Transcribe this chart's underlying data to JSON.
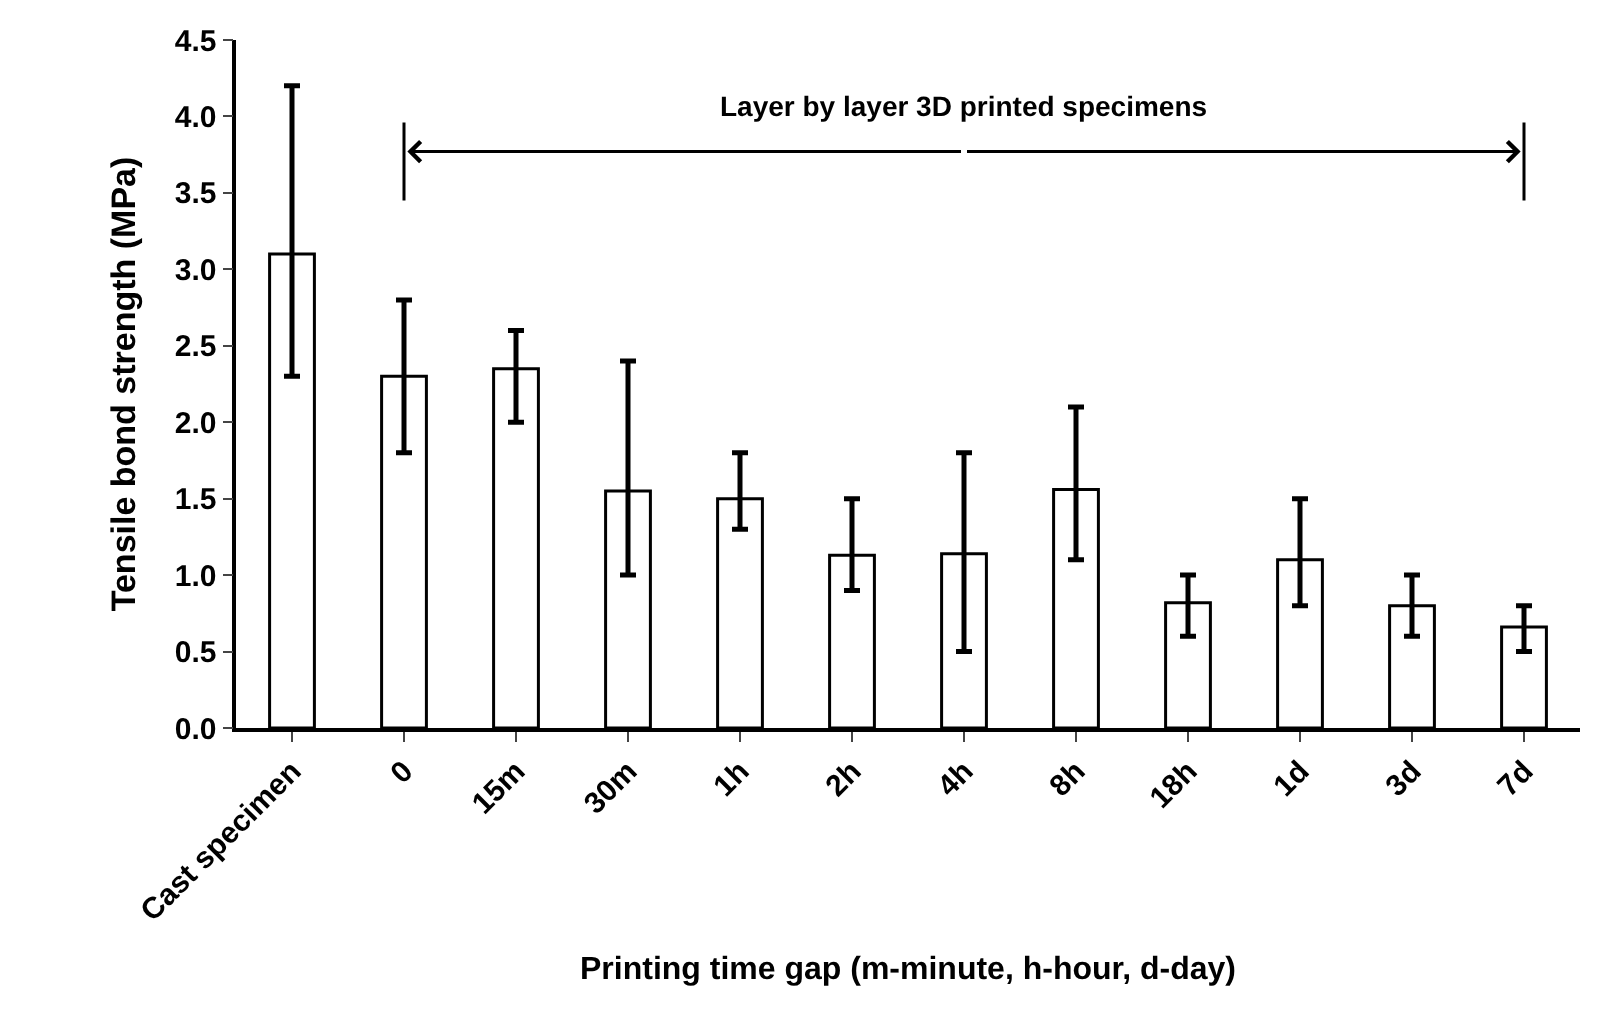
{
  "chart_data": {
    "type": "bar",
    "xlabel": "Printing time gap (m-minute, h-hour, d-day)",
    "ylabel": "Tensile bond strength (MPa)",
    "categories": [
      "Cast specimen",
      "0",
      "15m",
      "30m",
      "1h",
      "2h",
      "4h",
      "8h",
      "18h",
      "1d",
      "3d",
      "7d"
    ],
    "values": [
      3.1,
      2.3,
      2.35,
      1.55,
      1.5,
      1.13,
      1.14,
      1.56,
      0.82,
      1.1,
      0.8,
      0.66
    ],
    "errors": [
      [
        2.3,
        4.2
      ],
      [
        1.8,
        2.8
      ],
      [
        2.0,
        2.6
      ],
      [
        1.0,
        2.4
      ],
      [
        1.3,
        1.8
      ],
      [
        0.9,
        1.5
      ],
      [
        0.5,
        1.8
      ],
      [
        1.1,
        2.1
      ],
      [
        0.6,
        1.0
      ],
      [
        0.8,
        1.5
      ],
      [
        0.6,
        1.0
      ],
      [
        0.5,
        0.8
      ]
    ],
    "color": "#ffffff",
    "ylim": [
      0,
      4.5
    ],
    "yticks": [
      {
        "value": 0,
        "label": "0.0"
      },
      {
        "value": 0.5,
        "label": "0.5"
      },
      {
        "value": 1,
        "label": "1.0"
      },
      {
        "value": 1.5,
        "label": "1.5"
      },
      {
        "value": 2,
        "label": "2.0"
      },
      {
        "value": 2.5,
        "label": "2.5"
      },
      {
        "value": 3,
        "label": "3.0"
      },
      {
        "value": 3.5,
        "label": "3.5"
      },
      {
        "value": 4,
        "label": "4.0"
      },
      {
        "value": 4.5,
        "label": "4.5"
      }
    ],
    "annotations": [
      "Layer by layer 3D printed specimens"
    ],
    "legend": false
  }
}
